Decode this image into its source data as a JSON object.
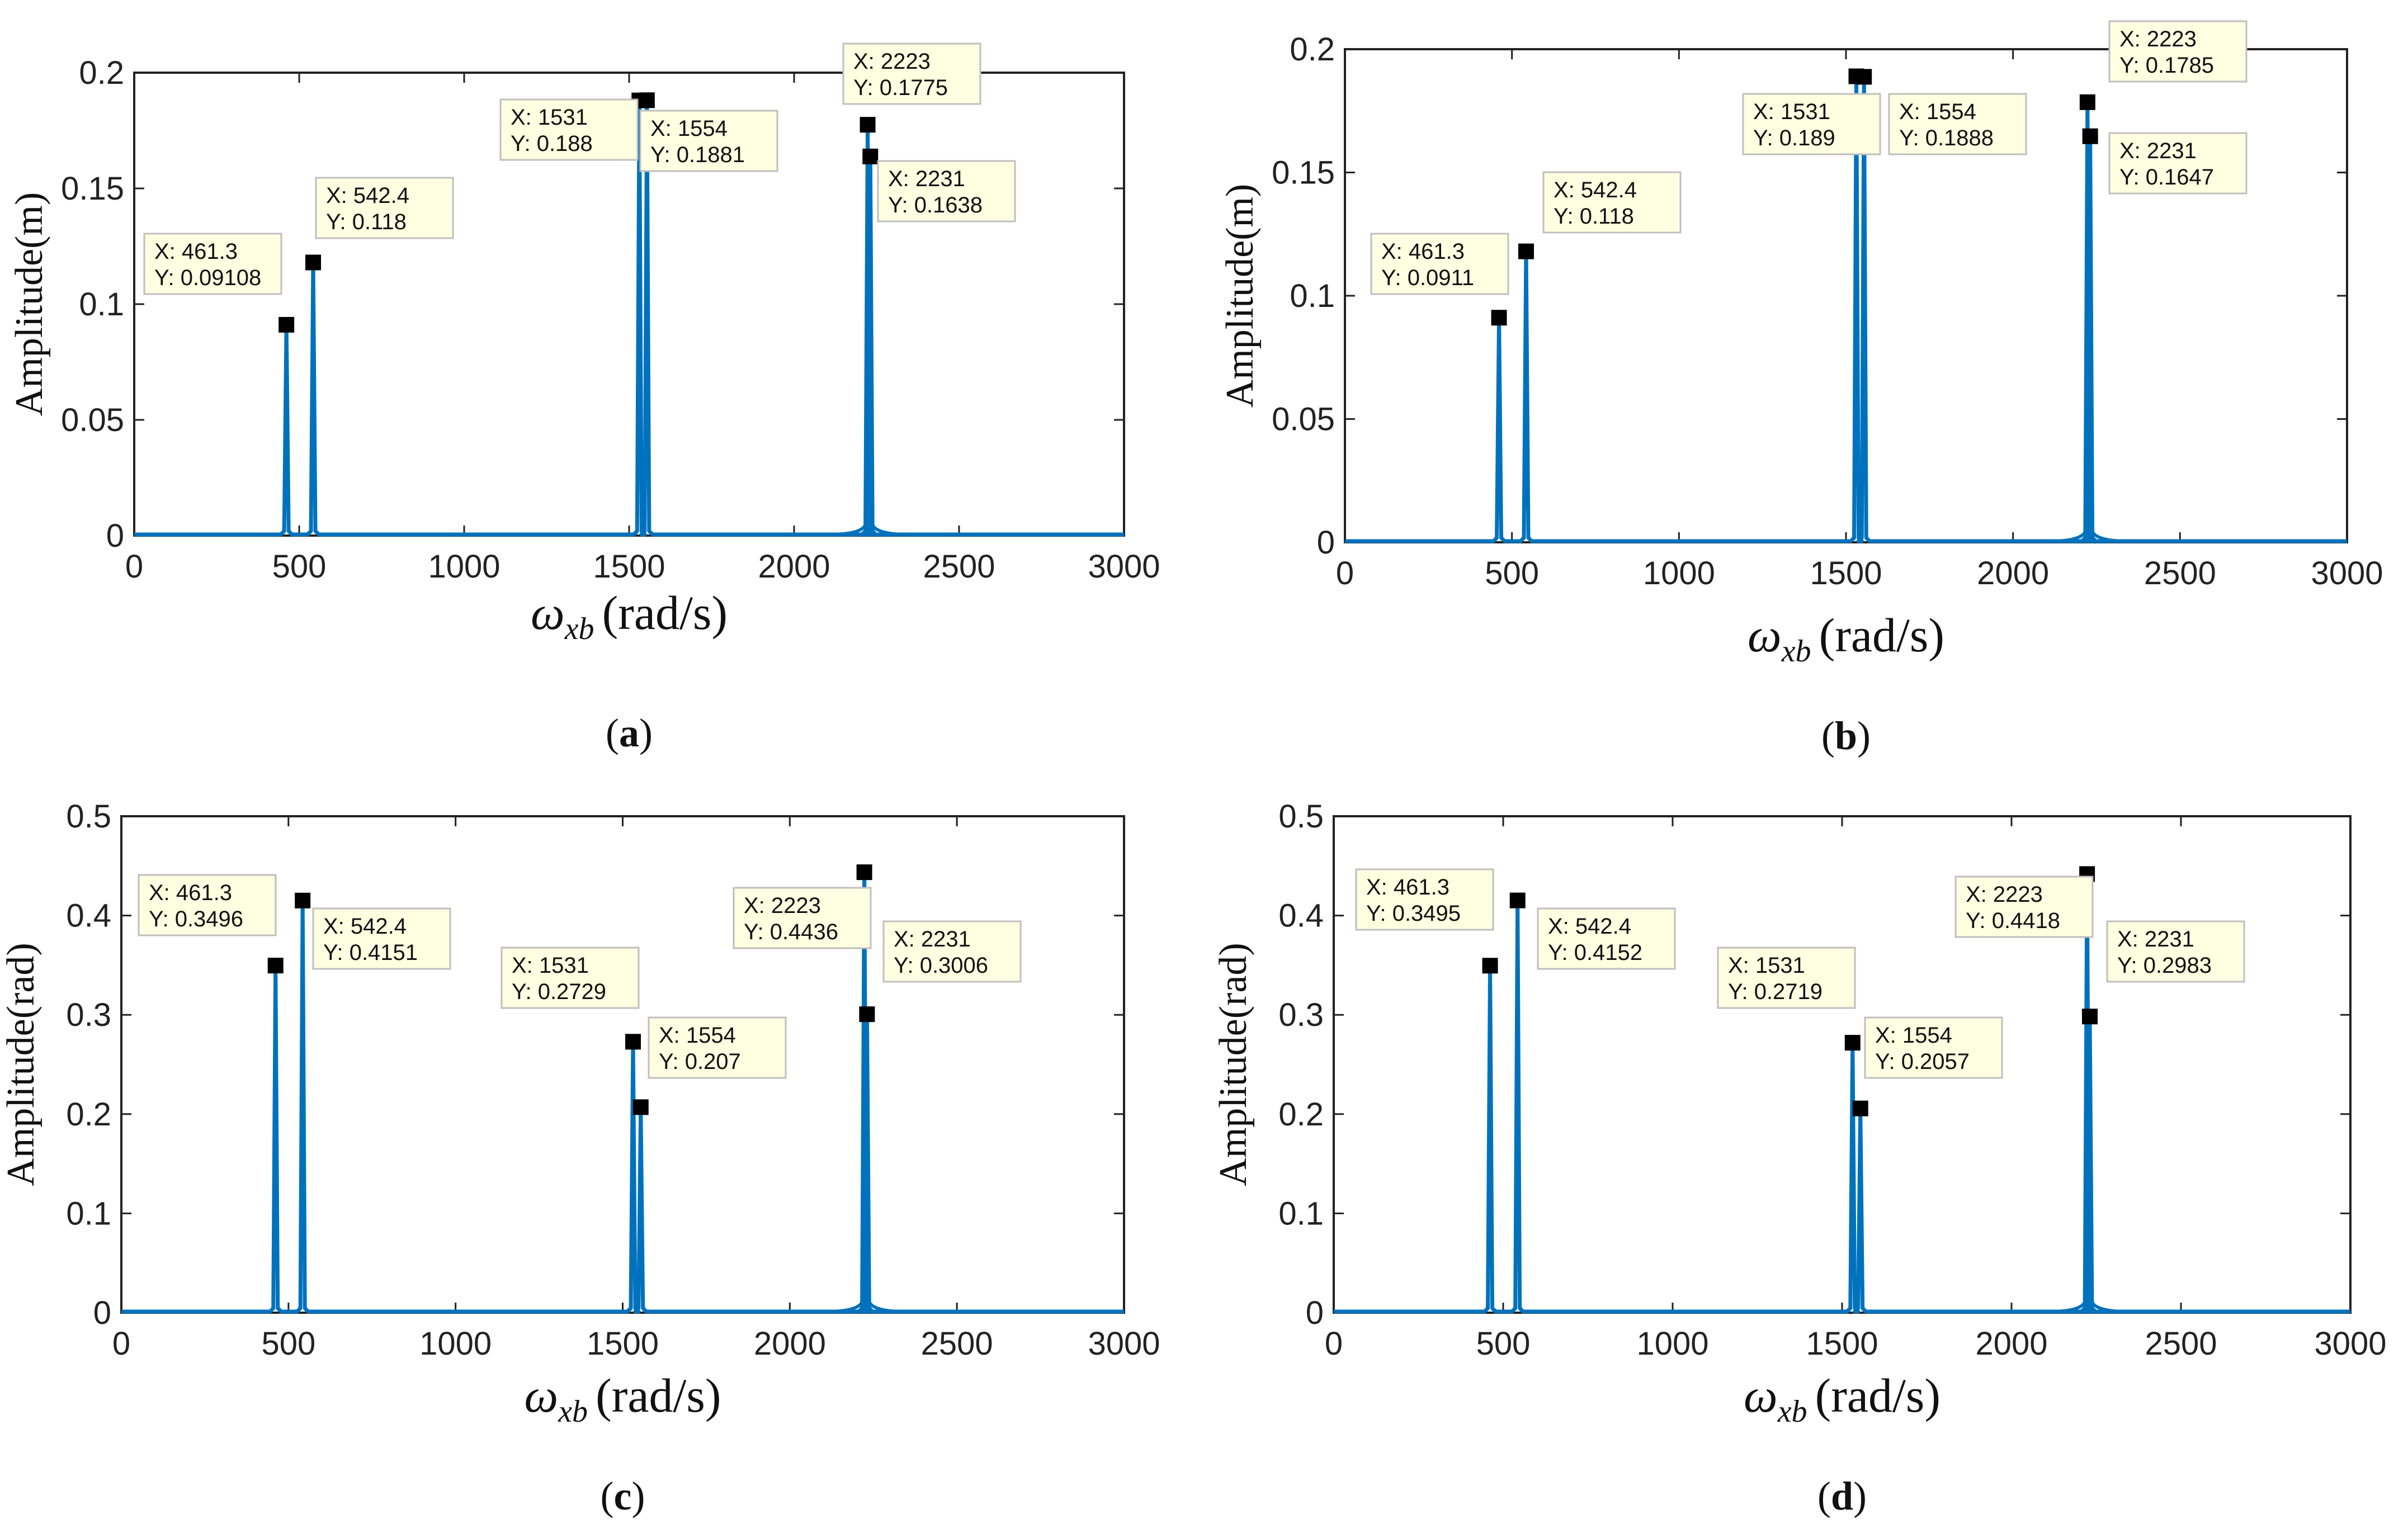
{
  "colors": {
    "line": "#0072BD",
    "axis": "#222222",
    "datatip_fill": "#FFFFE1",
    "datatip_border": "#BFBFBF",
    "marker": "#000000"
  },
  "common": {
    "xlabel_symbol": "ω",
    "xlabel_subscript": "xb",
    "xlabel_unit": "(rad/s)"
  },
  "chart_data": [
    {
      "type": "line",
      "panel_label": "(a)",
      "ylabel": "Amplitude(m)",
      "xlim": [
        0,
        3000
      ],
      "ylim": [
        0,
        0.2
      ],
      "xticks": [
        0,
        500,
        1000,
        1500,
        2000,
        2500,
        3000
      ],
      "xtick_labels": [
        "0",
        "500",
        "1000",
        "1500",
        "2000",
        "2500",
        "3000"
      ],
      "yticks": [
        0,
        0.05,
        0.1,
        0.15,
        0.2
      ],
      "ytick_labels": [
        "0",
        "0.05",
        "0.1",
        "0.15",
        "0.2"
      ],
      "peaks": [
        {
          "x": 461.3,
          "y": 0.09108
        },
        {
          "x": 542.4,
          "y": 0.118
        },
        {
          "x": 1531,
          "y": 0.188
        },
        {
          "x": 1554,
          "y": 0.1881
        },
        {
          "x": 2223,
          "y": 0.1775
        },
        {
          "x": 2231,
          "y": 0.1638
        }
      ],
      "datatips": [
        {
          "x_text": "X: 461.3",
          "y_text": "Y: 0.09108",
          "x": 461.3,
          "y": 0.09108
        },
        {
          "x_text": "X: 542.4",
          "y_text": "Y: 0.118",
          "x": 542.4,
          "y": 0.118
        },
        {
          "x_text": "X: 1531",
          "y_text": "Y: 0.188",
          "x": 1531,
          "y": 0.188
        },
        {
          "x_text": "X: 1554",
          "y_text": "Y: 0.1881",
          "x": 1554,
          "y": 0.1881
        },
        {
          "x_text": "X: 2223",
          "y_text": "Y: 0.1775",
          "x": 2223,
          "y": 0.1775
        },
        {
          "x_text": "X: 2231",
          "y_text": "Y: 0.1638",
          "x": 2231,
          "y": 0.1638
        }
      ]
    },
    {
      "type": "line",
      "panel_label": "(b)",
      "ylabel": "Amplitude(m)",
      "xlim": [
        0,
        3000
      ],
      "ylim": [
        0,
        0.2
      ],
      "xticks": [
        0,
        500,
        1000,
        1500,
        2000,
        2500,
        3000
      ],
      "xtick_labels": [
        "0",
        "500",
        "1000",
        "1500",
        "2000",
        "2500",
        "3000"
      ],
      "yticks": [
        0,
        0.05,
        0.1,
        0.15,
        0.2
      ],
      "ytick_labels": [
        "0",
        "0.05",
        "0.1",
        "0.15",
        "0.2"
      ],
      "peaks": [
        {
          "x": 461.3,
          "y": 0.0911
        },
        {
          "x": 542.4,
          "y": 0.118
        },
        {
          "x": 1531,
          "y": 0.189
        },
        {
          "x": 1554,
          "y": 0.1888
        },
        {
          "x": 2223,
          "y": 0.1785
        },
        {
          "x": 2231,
          "y": 0.1647
        }
      ],
      "datatips": [
        {
          "x_text": "X: 461.3",
          "y_text": "Y: 0.0911",
          "x": 461.3,
          "y": 0.0911
        },
        {
          "x_text": "X: 542.4",
          "y_text": "Y: 0.118",
          "x": 542.4,
          "y": 0.118
        },
        {
          "x_text": "X: 1531",
          "y_text": "Y: 0.189",
          "x": 1531,
          "y": 0.189
        },
        {
          "x_text": "X: 1554",
          "y_text": "Y: 0.1888",
          "x": 1554,
          "y": 0.1888
        },
        {
          "x_text": "X: 2223",
          "y_text": "Y: 0.1785",
          "x": 2223,
          "y": 0.1785
        },
        {
          "x_text": "X: 2231",
          "y_text": "Y: 0.1647",
          "x": 2231,
          "y": 0.1647
        }
      ]
    },
    {
      "type": "line",
      "panel_label": "(c)",
      "ylabel": "Amplitude(rad)",
      "xlim": [
        0,
        3000
      ],
      "ylim": [
        0,
        0.5
      ],
      "xticks": [
        0,
        500,
        1000,
        1500,
        2000,
        2500,
        3000
      ],
      "xtick_labels": [
        "0",
        "500",
        "1000",
        "1500",
        "2000",
        "2500",
        "3000"
      ],
      "yticks": [
        0,
        0.1,
        0.2,
        0.3,
        0.4,
        0.5
      ],
      "ytick_labels": [
        "0",
        "0.1",
        "0.2",
        "0.3",
        "0.4",
        "0.5"
      ],
      "peaks": [
        {
          "x": 461.3,
          "y": 0.3496
        },
        {
          "x": 542.4,
          "y": 0.4151
        },
        {
          "x": 1531,
          "y": 0.2729
        },
        {
          "x": 1554,
          "y": 0.207
        },
        {
          "x": 2223,
          "y": 0.4436
        },
        {
          "x": 2231,
          "y": 0.3006
        }
      ],
      "datatips": [
        {
          "x_text": "X: 461.3",
          "y_text": "Y: 0.3496",
          "x": 461.3,
          "y": 0.3496
        },
        {
          "x_text": "X: 542.4",
          "y_text": "Y: 0.4151",
          "x": 542.4,
          "y": 0.4151
        },
        {
          "x_text": "X: 1531",
          "y_text": "Y: 0.2729",
          "x": 1531,
          "y": 0.2729
        },
        {
          "x_text": "X: 1554",
          "y_text": "Y: 0.207",
          "x": 1554,
          "y": 0.207
        },
        {
          "x_text": "X: 2223",
          "y_text": "Y: 0.4436",
          "x": 2223,
          "y": 0.4436
        },
        {
          "x_text": "X: 2231",
          "y_text": "Y: 0.3006",
          "x": 2231,
          "y": 0.3006
        }
      ]
    },
    {
      "type": "line",
      "panel_label": "(d)",
      "ylabel": "Amplitude(rad)",
      "xlim": [
        0,
        3000
      ],
      "ylim": [
        0,
        0.5
      ],
      "xticks": [
        0,
        500,
        1000,
        1500,
        2000,
        2500,
        3000
      ],
      "xtick_labels": [
        "0",
        "500",
        "1000",
        "1500",
        "2000",
        "2500",
        "3000"
      ],
      "yticks": [
        0,
        0.1,
        0.2,
        0.3,
        0.4,
        0.5
      ],
      "ytick_labels": [
        "0",
        "0.1",
        "0.2",
        "0.3",
        "0.4",
        "0.5"
      ],
      "peaks": [
        {
          "x": 461.3,
          "y": 0.3495
        },
        {
          "x": 542.4,
          "y": 0.4152
        },
        {
          "x": 1531,
          "y": 0.2719
        },
        {
          "x": 1554,
          "y": 0.2057
        },
        {
          "x": 2223,
          "y": 0.4418
        },
        {
          "x": 2231,
          "y": 0.2983
        }
      ],
      "datatips": [
        {
          "x_text": "X: 461.3",
          "y_text": "Y: 0.3495",
          "x": 461.3,
          "y": 0.3495
        },
        {
          "x_text": "X: 542.4",
          "y_text": "Y: 0.4152",
          "x": 542.4,
          "y": 0.4152
        },
        {
          "x_text": "X: 1531",
          "y_text": "Y: 0.2719",
          "x": 1531,
          "y": 0.2719
        },
        {
          "x_text": "X: 1554",
          "y_text": "Y: 0.2057",
          "x": 1554,
          "y": 0.2057
        },
        {
          "x_text": "X: 2223",
          "y_text": "Y: 0.4418",
          "x": 2223,
          "y": 0.4418
        },
        {
          "x_text": "X: 2231",
          "y_text": "Y: 0.2983",
          "x": 2231,
          "y": 0.2983
        }
      ]
    }
  ]
}
